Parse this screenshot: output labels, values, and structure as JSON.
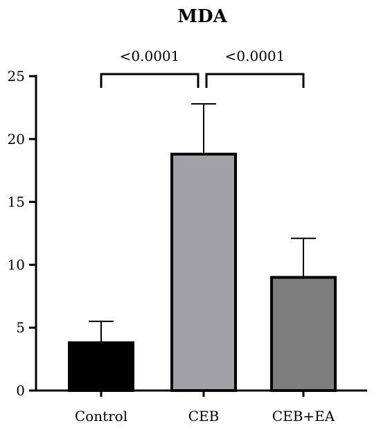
{
  "chart_data": {
    "type": "bar",
    "title": "MDA",
    "xlabel": "",
    "ylabel": "",
    "categories": [
      "Control",
      "CEB",
      "CEB+EA"
    ],
    "values": [
      3.8,
      18.8,
      9.0
    ],
    "errors": [
      1.7,
      4.0,
      3.1
    ],
    "ylim": [
      0,
      25
    ],
    "yticks": [
      0,
      5,
      10,
      15,
      20,
      25
    ],
    "bar_colors": [
      "#000000",
      "#a2a1a6",
      "#7e7e7e"
    ],
    "grid": false,
    "significance": [
      {
        "from": 0,
        "to": 1,
        "label": "<0.0001"
      },
      {
        "from": 1,
        "to": 2,
        "label": "<0.0001"
      }
    ]
  }
}
